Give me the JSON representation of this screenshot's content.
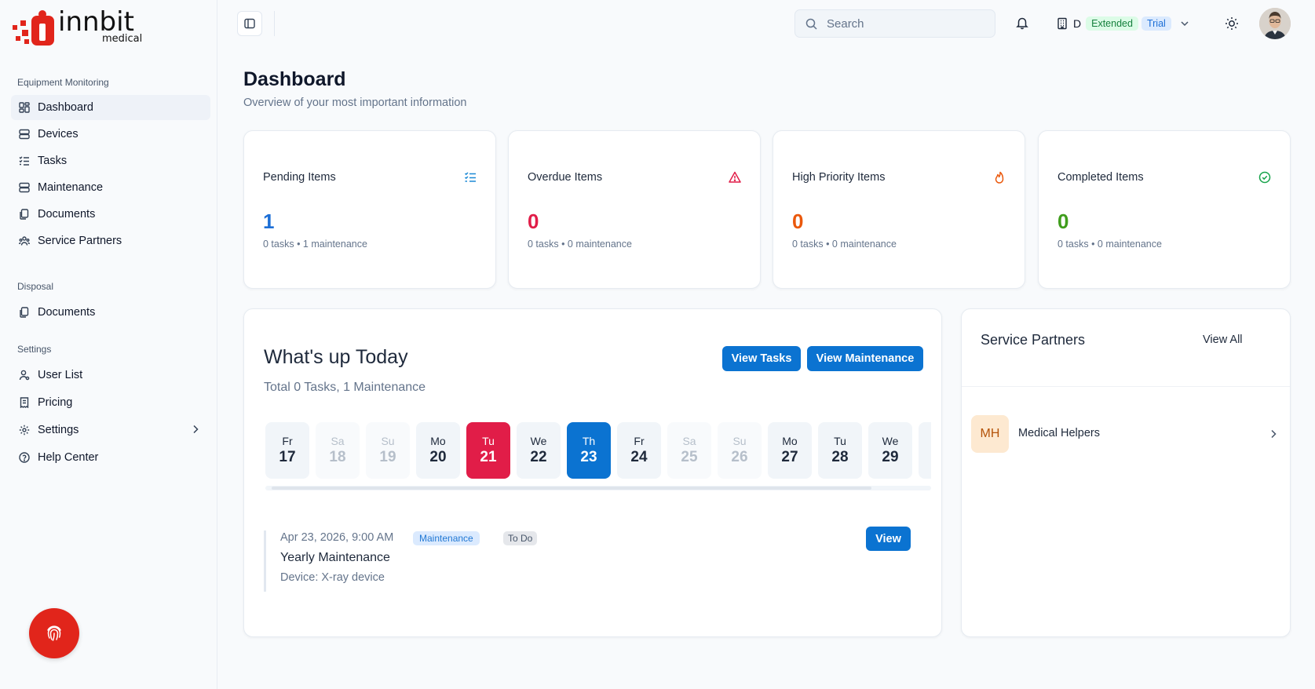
{
  "brand": {
    "name": "innbit",
    "sub": "medical",
    "accent": "#e1251b"
  },
  "sidebar": {
    "sections": [
      {
        "title": "Equipment Monitoring"
      },
      {
        "title": "Disposal"
      },
      {
        "title": "Settings"
      }
    ],
    "items": [
      {
        "label": "Dashboard",
        "icon": "dashboard-icon",
        "active": true
      },
      {
        "label": "Devices",
        "icon": "server-icon"
      },
      {
        "label": "Tasks",
        "icon": "list-check-icon"
      },
      {
        "label": "Maintenance",
        "icon": "server-icon"
      },
      {
        "label": "Documents",
        "icon": "files-icon"
      },
      {
        "label": "Service Partners",
        "icon": "users-icon"
      },
      {
        "label": "Documents",
        "icon": "files-icon"
      },
      {
        "label": "User List",
        "icon": "user-icon"
      },
      {
        "label": "Pricing",
        "icon": "receipt-icon"
      },
      {
        "label": "Settings",
        "icon": "gear-icon"
      },
      {
        "label": "Help Center",
        "icon": "help-circle-icon"
      }
    ]
  },
  "topbar": {
    "search_placeholder": "Search",
    "org_initial": "D",
    "plan_badge": "Extended",
    "trial_badge": "Trial"
  },
  "page": {
    "title": "Dashboard",
    "subtitle": "Overview of your most important information"
  },
  "stats": [
    {
      "label": "Pending Items",
      "value": "1",
      "meta": "0 tasks • 1 maintenance",
      "color": "#1d6fd6",
      "icon": "list-check-icon"
    },
    {
      "label": "Overdue Items",
      "value": "0",
      "meta": "0 tasks • 0 maintenance",
      "color": "#e11d48",
      "icon": "warning-triangle-icon"
    },
    {
      "label": "High Priority Items",
      "value": "0",
      "meta": "0 tasks • 0 maintenance",
      "color": "#ea580c",
      "icon": "flame-icon"
    },
    {
      "label": "Completed Items",
      "value": "0",
      "meta": "0 tasks • 0 maintenance",
      "color": "#16a34a",
      "icon": "check-circle-icon"
    }
  ],
  "today": {
    "title": "What's up Today",
    "subtitle": "Total 0 Tasks, 1 Maintenance",
    "view_tasks": "View Tasks",
    "view_maintenance": "View Maintenance",
    "days": [
      {
        "name": "Fr",
        "num": "17"
      },
      {
        "name": "Sa",
        "num": "18",
        "weekend": true
      },
      {
        "name": "Su",
        "num": "19",
        "weekend": true
      },
      {
        "name": "Mo",
        "num": "20"
      },
      {
        "name": "Tu",
        "num": "21",
        "today": true
      },
      {
        "name": "We",
        "num": "22"
      },
      {
        "name": "Th",
        "num": "23",
        "selected": true
      },
      {
        "name": "Fr",
        "num": "24"
      },
      {
        "name": "Sa",
        "num": "25",
        "weekend": true
      },
      {
        "name": "Su",
        "num": "26",
        "weekend": true
      },
      {
        "name": "Mo",
        "num": "27"
      },
      {
        "name": "Tu",
        "num": "28"
      },
      {
        "name": "We",
        "num": "29"
      }
    ],
    "event": {
      "datetime": "Apr 23, 2026, 9:00 AM",
      "type_badge": "Maintenance",
      "status_badge": "To Do",
      "title": "Yearly Maintenance",
      "device": "Device: X-ray device",
      "view": "View"
    }
  },
  "partners": {
    "title": "Service Partners",
    "view_all": "View All",
    "items": [
      {
        "initials": "MH",
        "name": "Medical Helpers"
      }
    ]
  }
}
